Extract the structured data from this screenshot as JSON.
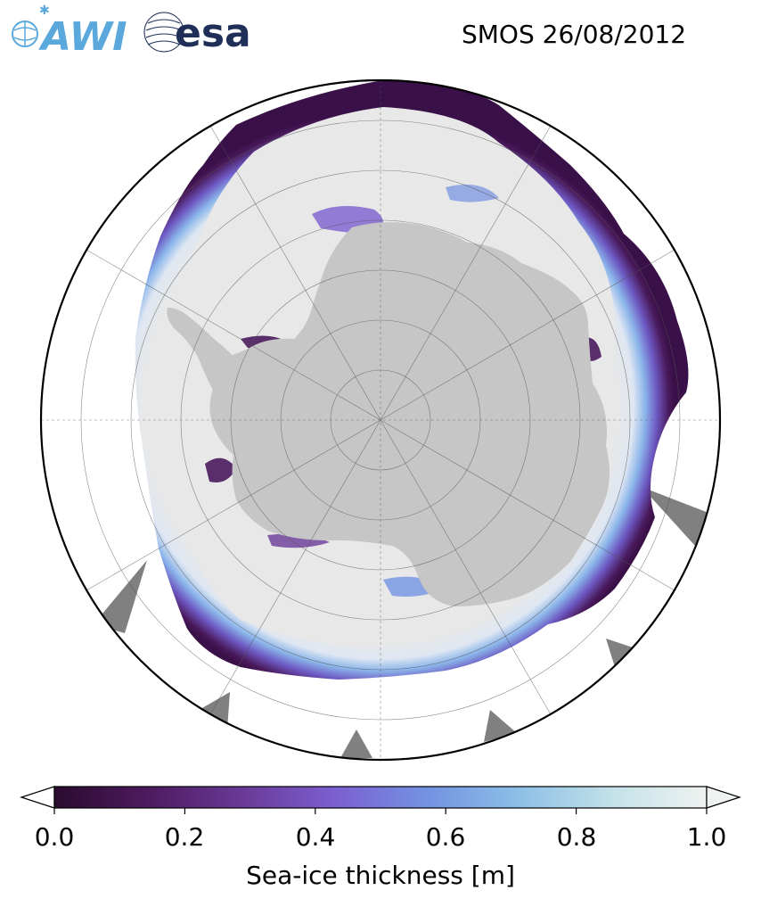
{
  "header": {
    "title": "SMOS 26/08/2012",
    "logos": [
      {
        "name": "AWI",
        "text": "AWI",
        "color": "#5aa8dc"
      },
      {
        "name": "esa",
        "text": "esa",
        "color": "#1f2f57"
      }
    ]
  },
  "map": {
    "projection": "south-polar-stereographic",
    "colors": {
      "land": "#c6c6c6",
      "thick_ice": "#e8e8e8",
      "thin_ice_edge": "#4a1a5c",
      "mid_ice": "#7b5cc7",
      "light_ice": "#7fa8e6",
      "no_data": "#808080",
      "ocean": "#ffffff"
    },
    "graticule_rings": 6,
    "graticule_meridians": 12
  },
  "colorbar": {
    "label": "Sea-ice thickness [m]",
    "ticks": [
      "0.0",
      "0.2",
      "0.4",
      "0.6",
      "0.8",
      "1.0"
    ],
    "range": [
      0.0,
      1.0
    ],
    "extend": "both",
    "colormap": [
      "#2b0b2f",
      "#4c1a5d",
      "#6a3a98",
      "#7b5fd0",
      "#7392e2",
      "#8bbfe6",
      "#c5e2e8",
      "#eef2f0"
    ]
  }
}
